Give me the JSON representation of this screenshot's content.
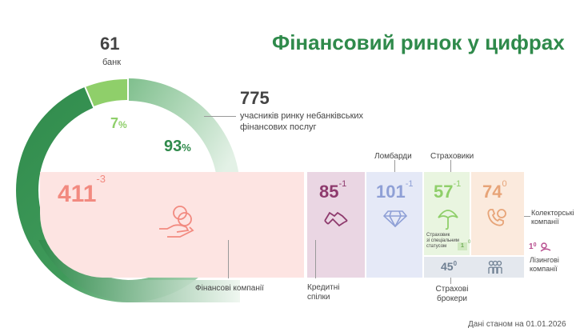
{
  "title": "Фінансовий ринок у цифрах",
  "banks": {
    "value": "61",
    "label": "банк",
    "share": "7",
    "share_unit": "%"
  },
  "nonbank": {
    "value": "775",
    "label_line1": "учасників ринку небанківських",
    "label_line2": "фінансових послуг",
    "share": "93",
    "share_unit": "%"
  },
  "segments": {
    "finance": {
      "value": "411",
      "delta": "-3",
      "label": "Фінансові компанії",
      "icon": "hand-coins-icon"
    },
    "credit": {
      "value": "85",
      "delta": "-1",
      "label_line1": "Кредитні",
      "label_line2": "спілки",
      "icon": "handshake-icon"
    },
    "pawn": {
      "value": "101",
      "delta": "-1",
      "label": "Ломбарди",
      "icon": "diamond-icon"
    },
    "insurers": {
      "value": "57",
      "delta": "-1",
      "label": "Страховики",
      "icon": "umbrella-icon",
      "special_line1": "Страховик",
      "special_line2": "зі спеціальним",
      "special_line3": "статусом",
      "special_value": "1",
      "special_delta": "0"
    },
    "collectors": {
      "value": "74",
      "delta": "0",
      "label_line1": "Колекторські",
      "label_line2": "компанії",
      "icon": "phone-icon"
    },
    "leasing": {
      "value": "1",
      "delta": "0",
      "label_line1": "Лізингові",
      "label_line2": "компанії",
      "icon": "leasing-icon"
    },
    "brokers": {
      "value": "45",
      "delta": "0",
      "label_line1": "Страхові",
      "label_line2": "брокери",
      "icon": "people-icon"
    }
  },
  "footer": "Дані станом на 01.01.2026",
  "colors": {
    "title": "#2f8a4b",
    "bank_green": "#8fcf6a",
    "dark_green": "#2f8a4b",
    "finance": "#f28a80",
    "credit": "#8e3a6d",
    "pawn": "#8fa0d6",
    "insurers": "#8fcf6a",
    "collectors": "#e7a478",
    "brokers": "#6e7f92",
    "leasing": "#b64a8c"
  }
}
